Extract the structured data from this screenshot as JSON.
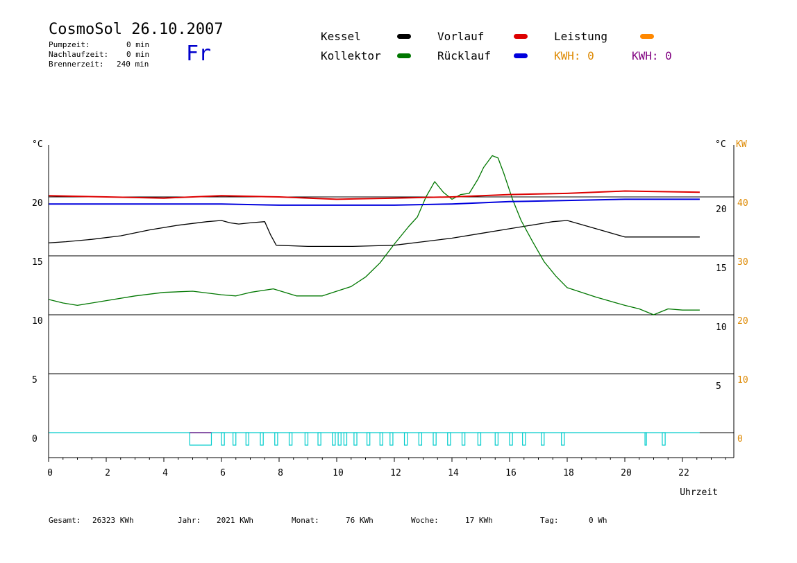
{
  "header": {
    "title": "CosmoSol 26.10.2007",
    "day": "Fr",
    "stats": [
      {
        "label": "Pumpzeit:",
        "value": "0 min"
      },
      {
        "label": "Nachlaufzeit:",
        "value": "0 min"
      },
      {
        "label": "Brennerzeit:",
        "value": "240 min"
      }
    ]
  },
  "legend": {
    "kessel": "Kessel",
    "kollektor": "Kollektor",
    "vorlauf": "Vorlauf",
    "ruecklauf": "Rücklauf",
    "leistung": "Leistung",
    "kwh_orange": "KWH: 0",
    "kwh_purple": "KWH: 0"
  },
  "colors": {
    "kessel": "#000000",
    "kollektor": "#007700",
    "vorlauf": "#dd0000",
    "ruecklauf": "#0000dd",
    "leistung": "#ff8800",
    "kwh_purple": "#800080",
    "pump": "#00cccc",
    "power_axis": "#dd8800",
    "day": "#0000cc"
  },
  "footer": {
    "gesamt_label": "Gesamt:",
    "gesamt_value": "26323 KWh",
    "jahr_label": "Jahr:",
    "jahr_value": "2021 KWh",
    "monat_label": "Monat:",
    "monat_value": "76 KWh",
    "woche_label": "Woche:",
    "woche_value": "17 KWh",
    "tag_label": "Tag:",
    "tag_value": "0 Wh"
  },
  "chart_data": {
    "type": "line",
    "xlabel": "Uhrzeit",
    "xlim": [
      0,
      23.8
    ],
    "x_ticks": [
      0,
      2,
      4,
      6,
      8,
      10,
      12,
      14,
      16,
      18,
      20,
      22
    ],
    "y_left_label": "°C",
    "y_right_label": "°C",
    "y_power_label": "KW",
    "y_left_ticks": [
      "20",
      "15",
      "10",
      "5",
      "0"
    ],
    "y_right_ticks": [
      "20",
      "15",
      "10",
      "5"
    ],
    "y_power_ticks": [
      "40",
      "30",
      "20",
      "10",
      "0"
    ],
    "ylim": [
      -2,
      25
    ],
    "grid_y": [
      0,
      5,
      10,
      15,
      20
    ],
    "series": [
      {
        "name": "Kessel",
        "key": "kessel",
        "x": [
          0,
          0.6,
          1.5,
          2.5,
          3.5,
          4.5,
          5.5,
          6.0,
          6.3,
          6.6,
          7.0,
          7.5,
          7.7,
          7.9,
          9.0,
          10.5,
          12.0,
          13.0,
          14.0,
          15.0,
          16.0,
          17.0,
          17.5,
          18.0,
          19.0,
          20.0,
          21.0,
          22.6
        ],
        "y": [
          16.1,
          16.2,
          16.4,
          16.7,
          17.2,
          17.6,
          17.9,
          18.0,
          17.8,
          17.7,
          17.8,
          17.9,
          16.8,
          15.9,
          15.8,
          15.8,
          15.9,
          16.2,
          16.5,
          16.9,
          17.3,
          17.7,
          17.9,
          18.0,
          17.3,
          16.6,
          16.6,
          16.6
        ]
      },
      {
        "name": "Kollektor",
        "key": "kollektor",
        "x": [
          0,
          0.5,
          1.0,
          2.0,
          3.0,
          4.0,
          5.0,
          6.0,
          6.5,
          7.0,
          7.8,
          8.6,
          9.0,
          9.5,
          10.0,
          10.5,
          11.0,
          11.5,
          12.0,
          12.5,
          12.8,
          13.1,
          13.4,
          13.7,
          14.0,
          14.3,
          14.6,
          14.9,
          15.1,
          15.4,
          15.6,
          15.8,
          16.1,
          16.4,
          16.8,
          17.2,
          17.6,
          18.0,
          19.0,
          20.0,
          20.5,
          21.0,
          21.5,
          22.0,
          22.6
        ],
        "y": [
          11.3,
          11.0,
          10.8,
          11.2,
          11.6,
          11.9,
          12.0,
          11.7,
          11.6,
          11.9,
          12.2,
          11.6,
          11.6,
          11.6,
          12.0,
          12.4,
          13.2,
          14.4,
          16.0,
          17.5,
          18.3,
          20.0,
          21.3,
          20.4,
          19.8,
          20.2,
          20.3,
          21.5,
          22.5,
          23.5,
          23.3,
          22.0,
          19.8,
          18.0,
          16.2,
          14.5,
          13.3,
          12.3,
          11.5,
          10.8,
          10.5,
          10.0,
          10.5,
          10.4,
          10.4
        ]
      },
      {
        "name": "Vorlauf",
        "key": "vorlauf",
        "x": [
          0,
          2,
          4,
          6,
          8,
          10,
          12,
          14,
          16,
          18,
          20,
          22.6
        ],
        "y": [
          20.1,
          20.0,
          19.9,
          20.1,
          20.0,
          19.8,
          19.9,
          20.0,
          20.2,
          20.3,
          20.5,
          20.4
        ]
      },
      {
        "name": "Rücklauf",
        "key": "ruecklauf",
        "x": [
          0,
          2,
          4,
          6,
          8,
          10,
          12,
          14,
          16,
          18,
          20,
          22.6
        ],
        "y": [
          19.4,
          19.4,
          19.4,
          19.4,
          19.3,
          19.3,
          19.3,
          19.4,
          19.6,
          19.7,
          19.8,
          19.8
        ]
      },
      {
        "name": "Pumpe",
        "key": "pump",
        "segments": [
          [
            4.9,
            5.65
          ],
          [
            6.0,
            6.1
          ],
          [
            6.4,
            6.5
          ],
          [
            6.85,
            6.95
          ],
          [
            7.35,
            7.45
          ],
          [
            7.85,
            7.95
          ],
          [
            8.35,
            8.45
          ],
          [
            8.9,
            9.0
          ],
          [
            9.35,
            9.45
          ],
          [
            9.85,
            9.95
          ],
          [
            10.05,
            10.15
          ],
          [
            10.25,
            10.35
          ],
          [
            10.6,
            10.7
          ],
          [
            11.05,
            11.15
          ],
          [
            11.5,
            11.6
          ],
          [
            11.85,
            11.95
          ],
          [
            12.35,
            12.45
          ],
          [
            12.85,
            12.95
          ],
          [
            13.35,
            13.45
          ],
          [
            13.85,
            13.95
          ],
          [
            14.35,
            14.45
          ],
          [
            14.9,
            15.0
          ],
          [
            15.5,
            15.6
          ],
          [
            16.0,
            16.1
          ],
          [
            16.45,
            16.55
          ],
          [
            17.1,
            17.2
          ],
          [
            17.8,
            17.9
          ],
          [
            20.7,
            20.75
          ],
          [
            21.3,
            21.4
          ]
        ]
      }
    ]
  }
}
